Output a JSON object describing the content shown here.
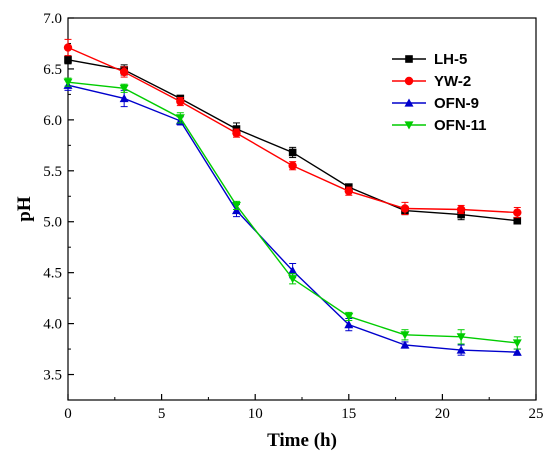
{
  "chart_data": {
    "type": "line",
    "title": "",
    "xlabel": "Time (h)",
    "ylabel": "pH",
    "xlim": [
      0,
      25
    ],
    "ylim": [
      3.25,
      7.0
    ],
    "xticks": [
      "0",
      "5",
      "10",
      "15",
      "20",
      "25"
    ],
    "yticks": [
      "3.5",
      "4.0",
      "4.5",
      "5.0",
      "5.5",
      "6.0",
      "6.5",
      "7.0"
    ],
    "grid": false,
    "legend_position": "top-right",
    "x": [
      0,
      3,
      6,
      9,
      12,
      15,
      18,
      21,
      24
    ],
    "series": [
      {
        "name": "LH-5",
        "color": "#000000",
        "marker": "square",
        "values": [
          6.59,
          6.49,
          6.21,
          5.91,
          5.68,
          5.34,
          5.11,
          5.07,
          5.01
        ],
        "errors": [
          0.04,
          0.05,
          0.03,
          0.06,
          0.05,
          0.03,
          0.04,
          0.05,
          0.03
        ]
      },
      {
        "name": "YW-2",
        "color": "#ff0000",
        "marker": "circle",
        "values": [
          6.71,
          6.47,
          6.18,
          5.87,
          5.55,
          5.3,
          5.13,
          5.12,
          5.09
        ],
        "errors": [
          0.08,
          0.05,
          0.04,
          0.04,
          0.04,
          0.04,
          0.06,
          0.04,
          0.05
        ]
      },
      {
        "name": "OFN-9",
        "color": "#0000cc",
        "marker": "triangle-up",
        "values": [
          6.34,
          6.21,
          5.99,
          5.11,
          4.52,
          3.99,
          3.79,
          3.74,
          3.72
        ],
        "errors": [
          0.05,
          0.08,
          0.04,
          0.06,
          0.07,
          0.06,
          0.03,
          0.05,
          0.03
        ]
      },
      {
        "name": "OFN-11",
        "color": "#00cc00",
        "marker": "triangle-down",
        "values": [
          6.37,
          6.31,
          6.02,
          5.16,
          4.44,
          4.07,
          3.89,
          3.87,
          3.81
        ],
        "errors": [
          0.04,
          0.04,
          0.05,
          0.04,
          0.05,
          0.04,
          0.05,
          0.07,
          0.06
        ]
      }
    ]
  }
}
